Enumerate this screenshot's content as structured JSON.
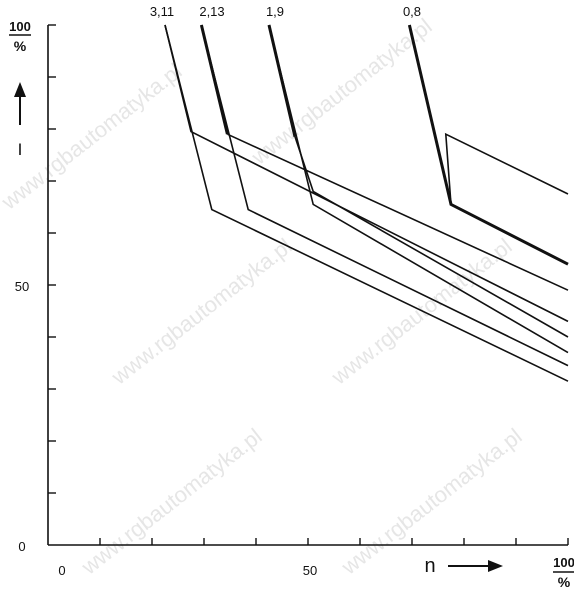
{
  "chart_data": {
    "type": "line",
    "x_axis": {
      "label": "n",
      "tick_labels": [
        "0",
        "50",
        "100"
      ],
      "end_unit": "%",
      "range": [
        0,
        100
      ]
    },
    "y_axis": {
      "label": "I",
      "tick_labels": [
        "0",
        "50",
        "100"
      ],
      "end_unit": "%",
      "range": [
        0,
        100
      ]
    },
    "grid": false,
    "curve_labels": [
      "3,11",
      "2,13",
      "1,9",
      "0,8"
    ],
    "series": [
      {
        "name": "3,11",
        "points": [
          [
            22.5,
            100
          ],
          [
            27.5,
            79.5
          ],
          [
            100,
            43
          ]
        ]
      },
      {
        "name": "3,11",
        "points": [
          [
            22.5,
            100
          ],
          [
            31.5,
            64.5
          ],
          [
            100,
            31.5
          ]
        ]
      },
      {
        "name": "2,13",
        "points": [
          [
            29.5,
            100
          ],
          [
            34.5,
            79
          ]
        ],
        "thick": true
      },
      {
        "name": "2,13",
        "points": [
          [
            34.5,
            79
          ],
          [
            100,
            49
          ]
        ]
      },
      {
        "name": "2,13",
        "points": [
          [
            29.5,
            100
          ],
          [
            38.5,
            64.5
          ],
          [
            100,
            34.5
          ]
        ]
      },
      {
        "name": "1,9",
        "points": [
          [
            42.5,
            100
          ],
          [
            47.5,
            78.5
          ]
        ],
        "thick": true
      },
      {
        "name": "1,9",
        "points": [
          [
            47.5,
            78.5
          ],
          [
            51,
            68
          ],
          [
            100,
            40
          ]
        ]
      },
      {
        "name": "1,9",
        "points": [
          [
            42.5,
            100
          ],
          [
            51,
            65.5
          ],
          [
            100,
            37
          ]
        ]
      },
      {
        "name": "0,8",
        "points": [
          [
            69.5,
            100
          ],
          [
            77.5,
            65.5
          ],
          [
            100,
            54
          ]
        ],
        "thick": true
      },
      {
        "name": "0,8",
        "points": [
          [
            77.5,
            65.5
          ],
          [
            76.5,
            79
          ],
          [
            100,
            67.5
          ]
        ]
      }
    ]
  },
  "watermark": "www.rgbautomatyka.pl"
}
